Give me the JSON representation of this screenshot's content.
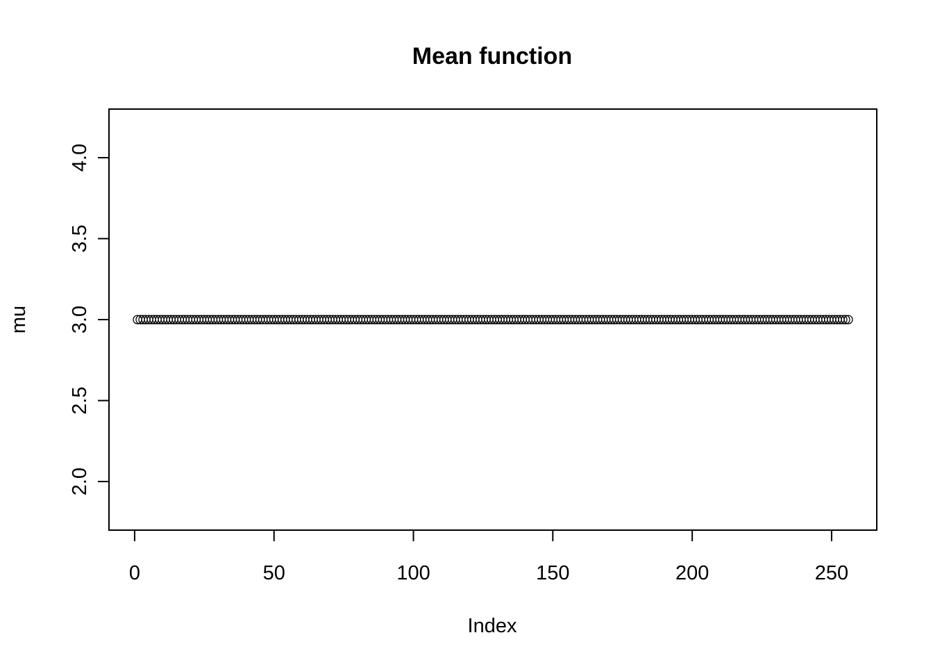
{
  "chart_data": {
    "type": "scatter",
    "title": "Mean function",
    "xlabel": "Index",
    "ylabel": "mu",
    "xlim": [
      1,
      256
    ],
    "ylim": [
      1.7,
      4.3
    ],
    "x_ticks": [
      0,
      50,
      100,
      150,
      200,
      250
    ],
    "y_ticks": [
      2.0,
      2.5,
      3.0,
      3.5,
      4.0
    ],
    "x_tick_labels": [
      "0",
      "50",
      "100",
      "150",
      "200",
      "250"
    ],
    "y_tick_labels": [
      "2.0",
      "2.5",
      "3.0",
      "3.5",
      "4.0"
    ],
    "grid": false,
    "marker": "open-circle",
    "series": [
      {
        "x_start": 1,
        "x_end": 256,
        "constant_value": 3.0
      }
    ]
  }
}
